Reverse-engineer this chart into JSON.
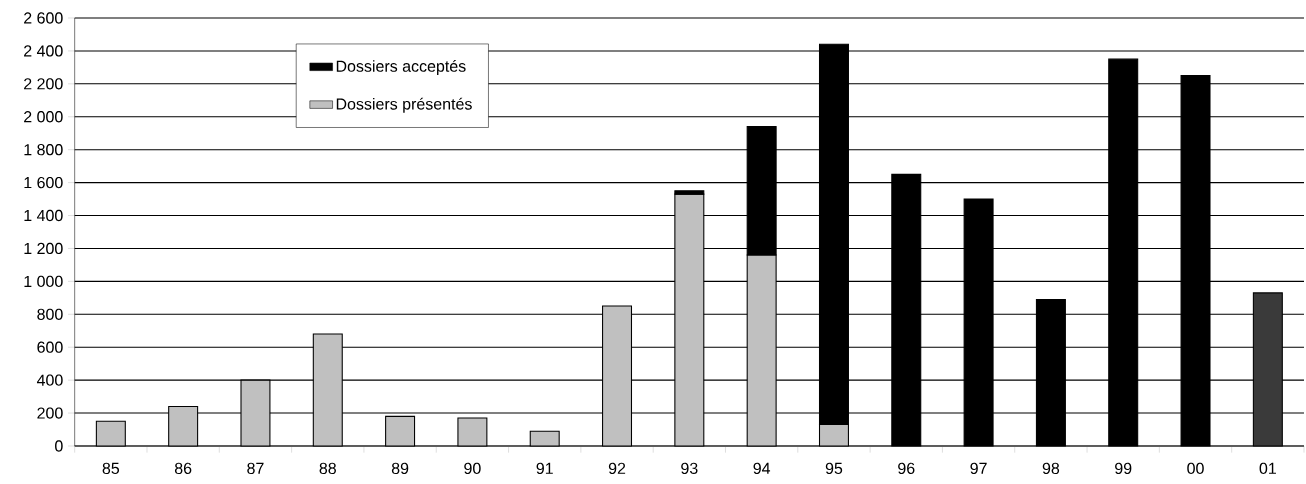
{
  "chart_data": {
    "type": "bar",
    "stacked": true,
    "categories": [
      "85",
      "86",
      "87",
      "88",
      "89",
      "90",
      "91",
      "92",
      "93",
      "94",
      "95",
      "96",
      "97",
      "98",
      "99",
      "00",
      "01"
    ],
    "series": [
      {
        "name": "Dossiers présentés",
        "color": "#c0c0c0",
        "values": [
          150,
          240,
          400,
          680,
          180,
          170,
          90,
          850,
          1530,
          1160,
          130,
          null,
          null,
          null,
          null,
          null,
          null
        ]
      },
      {
        "name": "Dossiers acceptés",
        "color": "#000000",
        "values": [
          null,
          null,
          null,
          null,
          null,
          null,
          null,
          null,
          20,
          780,
          2310,
          1650,
          1500,
          890,
          2350,
          2250,
          930
        ],
        "colors": [
          "#000000",
          "#000000",
          "#000000",
          "#000000",
          "#000000",
          "#000000",
          "#000000",
          "#000000",
          "#000000",
          "#000000",
          "#000000",
          "#000000",
          "#000000",
          "#000000",
          "#000000",
          "#000000",
          "#3a3a3a"
        ]
      }
    ],
    "ylim": [
      0,
      2600
    ],
    "yticks": [
      0,
      200,
      400,
      600,
      800,
      {
        "value": 1000,
        "label": "1 000"
      },
      {
        "value": 1200,
        "label": "1 200"
      },
      {
        "value": 1400,
        "label": "1 400"
      },
      {
        "value": 1600,
        "label": "1 600"
      },
      {
        "value": 1800,
        "label": "1 800"
      },
      {
        "value": 2000,
        "label": "2 000"
      },
      {
        "value": 2200,
        "label": "2 200"
      },
      {
        "value": 2400,
        "label": "2 400"
      },
      {
        "value": 2600,
        "label": "2 600"
      }
    ],
    "grid": "y",
    "legend": "top left"
  }
}
